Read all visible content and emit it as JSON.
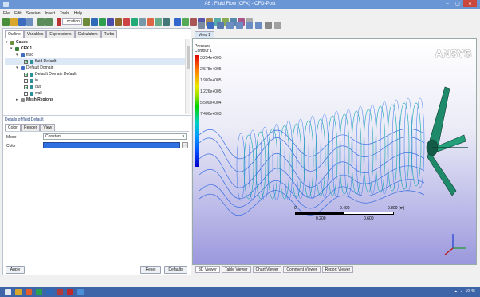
{
  "window": {
    "title": "A6 : Fluid Flow (CFX) - CFD-Post"
  },
  "menubar": {
    "items": [
      "File",
      "Edit",
      "Session",
      "Insert",
      "Tools",
      "Help"
    ]
  },
  "toolbar": {
    "location_label": "Location"
  },
  "left_panel": {
    "tabs": [
      "Outline",
      "Variables",
      "Expressions",
      "Calculators",
      "Turbo"
    ],
    "tree": [
      {
        "label": "Cases",
        "depth": 0,
        "checkbox": false,
        "checked": false,
        "expanded": true
      },
      {
        "label": "CFX 1",
        "depth": 1,
        "checkbox": false,
        "checked": false,
        "expanded": true
      },
      {
        "label": "fluid",
        "depth": 2,
        "checkbox": false,
        "checked": false,
        "expanded": true
      },
      {
        "label": "fluid Default",
        "depth": 3,
        "checkbox": true,
        "checked": true,
        "expanded": false
      },
      {
        "label": "Default Domain",
        "depth": 2,
        "checkbox": false,
        "checked": false,
        "expanded": true
      },
      {
        "label": "Default Domain Default",
        "depth": 3,
        "checkbox": true,
        "checked": true,
        "expanded": false
      },
      {
        "label": "in",
        "depth": 3,
        "checkbox": true,
        "checked": false,
        "expanded": false
      },
      {
        "label": "out",
        "depth": 3,
        "checkbox": true,
        "checked": true,
        "expanded": false
      },
      {
        "label": "wall",
        "depth": 3,
        "checkbox": true,
        "checked": false,
        "expanded": false
      },
      {
        "label": "Mesh Regions",
        "depth": 2,
        "checkbox": false,
        "checked": false,
        "expanded": false
      }
    ],
    "details_title": "Details of fluid Default",
    "details_tabs": [
      "Color",
      "Render",
      "View"
    ],
    "mode_label": "Mode",
    "mode_value": "Constant",
    "color_label": "Color",
    "apply_label": "Apply",
    "reset_label": "Reset",
    "defaults_label": "Defaults"
  },
  "viewer": {
    "tab_label": "View 1",
    "legend_title": "Pressure",
    "legend_subtitle": "Contour 1",
    "legend_values": [
      "3.254e+005",
      "2.578e+005",
      "1.902e+005",
      "1.226e+005",
      "5.500e+004",
      "7.480e+003"
    ],
    "logo": "ANSYS",
    "scale_top": [
      "0",
      "0.400",
      "0.800 (m)"
    ],
    "scale_bottom": [
      "0.200",
      "0.600"
    ]
  },
  "bottom_tabs": [
    "3D Viewer",
    "Table Viewer",
    "Chart Viewer",
    "Comment Viewer",
    "Report Viewer"
  ],
  "taskbar": {
    "time": "10:45"
  }
}
